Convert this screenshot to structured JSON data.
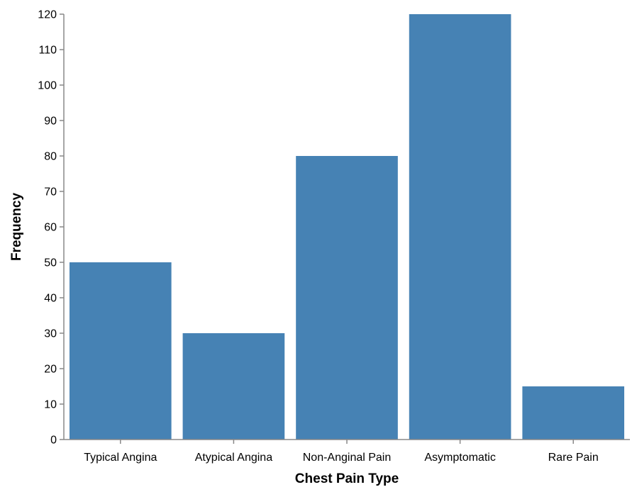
{
  "chart_data": {
    "type": "bar",
    "categories": [
      "Typical Angina",
      "Atypical Angina",
      "Non-Anginal Pain",
      "Asymptomatic",
      "Rare Pain"
    ],
    "values": [
      50,
      30,
      80,
      120,
      15
    ],
    "xlabel": "Chest Pain Type",
    "ylabel": "Frequency",
    "ylim": [
      0,
      120
    ],
    "yticks": [
      0,
      10,
      20,
      30,
      40,
      50,
      60,
      70,
      80,
      90,
      100,
      110,
      120
    ],
    "bar_color": "#4682b4",
    "grid": false
  }
}
